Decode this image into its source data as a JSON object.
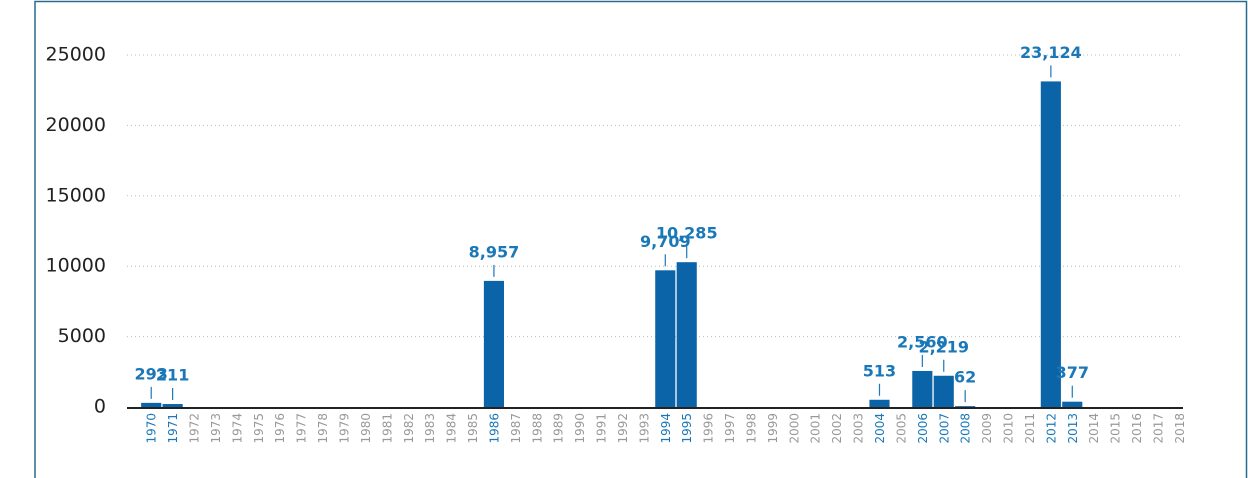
{
  "chart_data": {
    "type": "bar",
    "categories": [
      "1970",
      "1971",
      "1972",
      "1973",
      "1974",
      "1975",
      "1976",
      "1977",
      "1978",
      "1979",
      "1980",
      "1981",
      "1982",
      "1983",
      "1984",
      "1985",
      "1986",
      "1987",
      "1988",
      "1989",
      "1990",
      "1991",
      "1992",
      "1993",
      "1994",
      "1995",
      "1996",
      "1997",
      "1998",
      "1999",
      "2000",
      "2001",
      "2002",
      "2003",
      "2004",
      "2005",
      "2006",
      "2007",
      "2008",
      "2009",
      "2010",
      "2011",
      "2012",
      "2013",
      "2014",
      "2015",
      "2016",
      "2017",
      "2018"
    ],
    "values": [
      293,
      211,
      null,
      null,
      null,
      null,
      null,
      null,
      null,
      null,
      null,
      null,
      null,
      null,
      null,
      null,
      8957,
      null,
      null,
      null,
      null,
      null,
      null,
      null,
      9709,
      10285,
      null,
      null,
      null,
      null,
      null,
      null,
      null,
      null,
      513,
      null,
      2560,
      2219,
      62,
      null,
      null,
      null,
      23124,
      377,
      null,
      null,
      null,
      null,
      null
    ],
    "value_labels": [
      "293",
      "211",
      null,
      null,
      null,
      null,
      null,
      null,
      null,
      null,
      null,
      null,
      null,
      null,
      null,
      null,
      "8,957",
      null,
      null,
      null,
      null,
      null,
      null,
      null,
      "9,709",
      "10,285",
      null,
      null,
      null,
      null,
      null,
      null,
      null,
      null,
      "513",
      null,
      "2,560",
      "2,219",
      "62",
      null,
      null,
      null,
      "23,124",
      "377",
      null,
      null,
      null,
      null,
      null
    ],
    "color": "#0b64a8",
    "ylim": [
      0,
      25000
    ],
    "yticks": [
      0,
      5000,
      10000,
      15000,
      20000,
      25000
    ],
    "grid": true
  }
}
